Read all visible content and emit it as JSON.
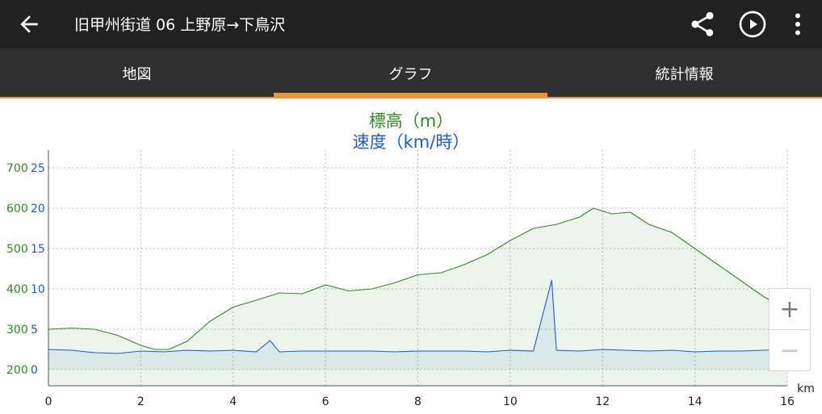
{
  "app_bar": {
    "title": "旧甲州街道 06 上野原→下鳥沢",
    "back_icon": "arrow-left-icon",
    "actions": [
      "share-icon",
      "play-icon",
      "more-vert-icon"
    ]
  },
  "tabs": [
    {
      "label": "地図",
      "selected": false
    },
    {
      "label": "グラフ",
      "selected": true
    },
    {
      "label": "統計情報",
      "selected": false
    }
  ],
  "colors": {
    "accent": "#f0923a",
    "elevation": "#2e8b22",
    "speed": "#1f5cc7",
    "appbar": "#212121",
    "tabbar": "#303030"
  },
  "zoom": {
    "in_label": "+",
    "out_label": "−"
  },
  "chart_data": [
    {
      "type": "area",
      "title": "標高（m）",
      "xlabel": "km",
      "ylabel": "標高（m）",
      "xlim": [
        0,
        16
      ],
      "ylim": [
        200,
        700
      ],
      "x_ticks": [
        "0",
        "2",
        "4",
        "6",
        "8",
        "10",
        "12",
        "14",
        "16"
      ],
      "y_ticks": [
        "700",
        "600",
        "500",
        "400",
        "300",
        "200"
      ],
      "grid": true,
      "series": [
        {
          "name": "標高（m）",
          "x": [
            0,
            0.5,
            1,
            1.5,
            2,
            2.3,
            2.6,
            3,
            3.5,
            4,
            4.5,
            5,
            5.5,
            6,
            6.5,
            7,
            7.5,
            8,
            8.5,
            9,
            9.5,
            10,
            10.5,
            11,
            11.5,
            11.8,
            12.2,
            12.6,
            13,
            13.5,
            14,
            14.5,
            15,
            15.5,
            16
          ],
          "y": [
            300,
            303,
            300,
            285,
            260,
            250,
            250,
            270,
            320,
            355,
            372,
            390,
            388,
            410,
            395,
            400,
            415,
            435,
            440,
            460,
            485,
            520,
            550,
            560,
            578,
            600,
            586,
            590,
            560,
            540,
            500,
            460,
            420,
            380,
            350
          ]
        }
      ]
    },
    {
      "type": "line",
      "title": "速度（km/時）",
      "xlabel": "km",
      "ylabel": "速度（km/時）",
      "xlim": [
        0,
        16
      ],
      "ylim": [
        0,
        25
      ],
      "y_ticks": [
        "25",
        "20",
        "15",
        "10",
        "5",
        "0"
      ],
      "series": [
        {
          "name": "速度（km/時）",
          "x": [
            0,
            0.5,
            1,
            1.5,
            2,
            2.5,
            3,
            3.5,
            4,
            4.5,
            4.8,
            5,
            5.5,
            6,
            6.5,
            7,
            7.5,
            8,
            8.5,
            9,
            9.5,
            10,
            10.5,
            10.9,
            11,
            11.5,
            12,
            12.5,
            13,
            13.5,
            14,
            14.5,
            15,
            15.5,
            16
          ],
          "y": [
            2.5,
            2.4,
            2.1,
            2.0,
            2.3,
            2.2,
            2.4,
            2.3,
            2.4,
            2.2,
            3.6,
            2.2,
            2.3,
            2.3,
            2.3,
            2.3,
            2.2,
            2.3,
            2.3,
            2.3,
            2.2,
            2.4,
            2.3,
            11.1,
            2.4,
            2.3,
            2.5,
            2.4,
            2.3,
            2.4,
            2.2,
            2.3,
            2.3,
            2.4,
            2.5
          ]
        }
      ]
    }
  ]
}
